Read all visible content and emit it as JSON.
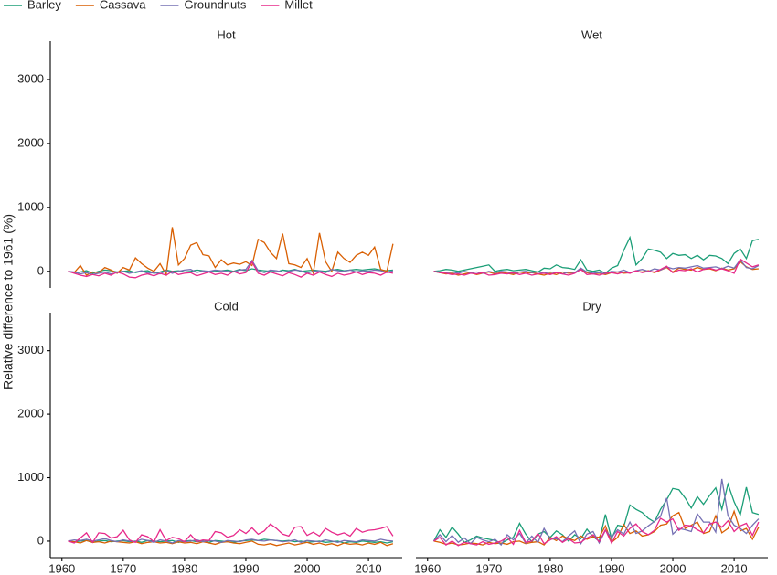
{
  "chart_data": {
    "type": "line",
    "y_label": "Relative difference to 1961 (%)",
    "series": [
      {
        "name": "Barley",
        "color": "#1b9e77"
      },
      {
        "name": "Cassava",
        "color": "#d95f02"
      },
      {
        "name": "Groundnuts",
        "color": "#7570b3"
      },
      {
        "name": "Millet",
        "color": "#e7298a"
      }
    ],
    "x": [
      1961,
      1962,
      1963,
      1964,
      1965,
      1966,
      1967,
      1968,
      1969,
      1970,
      1971,
      1972,
      1973,
      1974,
      1975,
      1976,
      1977,
      1978,
      1979,
      1980,
      1981,
      1982,
      1983,
      1984,
      1985,
      1986,
      1987,
      1988,
      1989,
      1990,
      1991,
      1992,
      1993,
      1994,
      1995,
      1996,
      1997,
      1998,
      1999,
      2000,
      2001,
      2002,
      2003,
      2004,
      2005,
      2006,
      2007,
      2008,
      2009,
      2010,
      2011,
      2012,
      2013,
      2014
    ],
    "xlim": [
      1958.1,
      2015.5
    ],
    "ylim": [
      -260,
      3600
    ],
    "xticks": [
      1960,
      1970,
      1980,
      1990,
      2000,
      2010
    ],
    "yticks": [
      0,
      1000,
      2000,
      3000
    ],
    "panels": [
      {
        "title": "Hot",
        "values": [
          [
            0,
            -20,
            -10,
            10,
            -30,
            0,
            20,
            10,
            -10,
            0,
            10,
            -20,
            0,
            10,
            -30,
            -10,
            20,
            0,
            10,
            -10,
            0,
            20,
            10,
            -10,
            0,
            10,
            20,
            0,
            30,
            10,
            40,
            20,
            10,
            0,
            -10,
            20,
            10,
            30,
            0,
            10,
            20,
            10,
            0,
            20,
            30,
            10,
            20,
            30,
            20,
            30,
            40,
            20,
            10,
            20
          ],
          [
            0,
            -20,
            90,
            -60,
            -10,
            -20,
            60,
            20,
            -30,
            60,
            20,
            210,
            120,
            50,
            0,
            120,
            -50,
            690,
            100,
            200,
            410,
            450,
            260,
            240,
            60,
            180,
            100,
            130,
            110,
            150,
            90,
            500,
            450,
            300,
            200,
            590,
            120,
            100,
            60,
            200,
            -30,
            600,
            150,
            0,
            300,
            200,
            140,
            250,
            300,
            250,
            380,
            30,
            0,
            430
          ],
          [
            0,
            -10,
            -40,
            -20,
            -50,
            -30,
            -10,
            -40,
            -20,
            0,
            -30,
            -10,
            10,
            -30,
            -20,
            -40,
            10,
            -30,
            0,
            20,
            30,
            -20,
            10,
            0,
            20,
            10,
            0,
            -10,
            20,
            30,
            170,
            10,
            -20,
            20,
            10,
            -10,
            0,
            20,
            10,
            -30,
            0,
            10,
            -20,
            30,
            10,
            0,
            20,
            -10,
            10,
            0,
            20,
            10,
            -20,
            10
          ],
          [
            0,
            -30,
            -60,
            -80,
            -50,
            -70,
            -30,
            -60,
            -10,
            -40,
            -90,
            -100,
            -60,
            -40,
            -70,
            -30,
            -60,
            0,
            -50,
            -30,
            -20,
            -70,
            -40,
            -10,
            -50,
            -30,
            -60,
            0,
            -40,
            -20,
            150,
            -30,
            -60,
            -10,
            -40,
            -70,
            -20,
            -50,
            -90,
            -30,
            -60,
            -10,
            -50,
            -80,
            -30,
            -60,
            -40,
            -10,
            -50,
            -20,
            -30,
            -60,
            -10,
            -30
          ]
        ]
      },
      {
        "title": "Wet",
        "values": [
          [
            0,
            10,
            30,
            20,
            0,
            20,
            40,
            60,
            80,
            100,
            0,
            20,
            30,
            10,
            20,
            30,
            10,
            -10,
            50,
            40,
            100,
            60,
            50,
            30,
            180,
            20,
            0,
            20,
            -30,
            50,
            90,
            330,
            530,
            100,
            200,
            350,
            330,
            300,
            200,
            280,
            250,
            260,
            200,
            250,
            180,
            250,
            240,
            200,
            120,
            280,
            350,
            200,
            480,
            500
          ],
          [
            0,
            -20,
            -40,
            -30,
            -60,
            -40,
            -20,
            -50,
            -30,
            -10,
            -40,
            -20,
            -30,
            -50,
            -10,
            -30,
            -20,
            -40,
            -60,
            -30,
            -50,
            -10,
            -30,
            -20,
            40,
            -20,
            -40,
            -30,
            -50,
            -20,
            -10,
            -30,
            -20,
            0,
            -10,
            10,
            -20,
            20,
            60,
            -10,
            50,
            30,
            20,
            60,
            30,
            40,
            10,
            50,
            20,
            40,
            150,
            70,
            30,
            40
          ],
          [
            0,
            -10,
            -20,
            -10,
            -30,
            0,
            -20,
            -10,
            -30,
            0,
            -20,
            0,
            -10,
            -30,
            -10,
            0,
            -20,
            -10,
            -30,
            -10,
            -20,
            -40,
            -10,
            -20,
            50,
            -10,
            -30,
            -20,
            -40,
            0,
            -10,
            20,
            -20,
            10,
            30,
            0,
            40,
            20,
            70,
            40,
            60,
            50,
            70,
            90,
            50,
            60,
            70,
            40,
            80,
            50,
            180,
            60,
            40,
            90
          ],
          [
            0,
            -20,
            -30,
            -50,
            -40,
            -60,
            -30,
            -40,
            -20,
            -60,
            -50,
            -30,
            -40,
            -20,
            -50,
            -30,
            -60,
            -40,
            -30,
            -50,
            -20,
            -40,
            -60,
            -30,
            30,
            -50,
            -40,
            -60,
            -30,
            -20,
            -40,
            -10,
            -30,
            10,
            -20,
            0,
            -10,
            30,
            80,
            -20,
            20,
            10,
            40,
            -10,
            30,
            50,
            20,
            40,
            10,
            -30,
            190,
            130,
            70,
            100
          ]
        ]
      },
      {
        "title": "Cold",
        "values": [
          [
            0,
            -10,
            0,
            10,
            -20,
            0,
            10,
            -10,
            0,
            10,
            -10,
            0,
            -20,
            10,
            0,
            -10,
            0,
            10,
            -20,
            0,
            10,
            -10,
            0,
            -20,
            10,
            0,
            -10,
            -20,
            0,
            10,
            20,
            10,
            30,
            20,
            10,
            0,
            10,
            -10,
            0,
            -20,
            -10,
            0,
            -20,
            -10,
            0,
            -30,
            -10,
            -20,
            0,
            -10,
            -20,
            -10,
            -30,
            -10
          ],
          [
            0,
            -10,
            -30,
            10,
            -20,
            -10,
            -30,
            0,
            -10,
            -20,
            -30,
            -10,
            -40,
            -20,
            -10,
            -30,
            -20,
            -40,
            -10,
            -30,
            -20,
            -40,
            -10,
            -30,
            -50,
            -20,
            -10,
            -30,
            -40,
            -20,
            0,
            -50,
            -60,
            -40,
            -70,
            -50,
            -30,
            -60,
            -40,
            -20,
            -50,
            -30,
            -60,
            -40,
            -70,
            -30,
            -50,
            -40,
            -60,
            -30,
            -50,
            -20,
            -70,
            -40
          ],
          [
            0,
            20,
            10,
            30,
            0,
            20,
            40,
            10,
            -10,
            20,
            0,
            -10,
            30,
            10,
            -20,
            20,
            0,
            -30,
            10,
            -10,
            0,
            20,
            -10,
            10,
            0,
            -20,
            10,
            0,
            -10,
            20,
            30,
            10,
            0,
            20,
            10,
            -10,
            0,
            20,
            -20,
            10,
            0,
            -10,
            20,
            0,
            -20,
            10,
            0,
            -10,
            20,
            10,
            0,
            30,
            10,
            0
          ],
          [
            0,
            -30,
            50,
            130,
            -20,
            130,
            120,
            50,
            70,
            170,
            20,
            -20,
            100,
            70,
            -10,
            180,
            10,
            60,
            40,
            -10,
            100,
            -10,
            20,
            10,
            150,
            130,
            60,
            90,
            180,
            120,
            210,
            110,
            160,
            270,
            200,
            110,
            80,
            220,
            230,
            90,
            140,
            80,
            200,
            140,
            100,
            130,
            80,
            200,
            140,
            170,
            180,
            200,
            230,
            80
          ]
        ]
      },
      {
        "title": "Dry",
        "values": [
          [
            0,
            180,
            60,
            220,
            110,
            -20,
            20,
            80,
            50,
            30,
            10,
            -40,
            20,
            60,
            280,
            110,
            -10,
            110,
            150,
            60,
            160,
            100,
            0,
            100,
            40,
            190,
            70,
            0,
            420,
            40,
            250,
            230,
            570,
            500,
            450,
            360,
            300,
            500,
            650,
            830,
            810,
            680,
            520,
            700,
            580,
            720,
            840,
            500,
            900,
            620,
            410,
            850,
            450,
            420
          ],
          [
            0,
            -20,
            -50,
            -30,
            -60,
            -50,
            -30,
            -40,
            -60,
            -20,
            -40,
            -30,
            -50,
            -10,
            0,
            -40,
            -20,
            -10,
            -60,
            60,
            10,
            80,
            40,
            10,
            80,
            30,
            70,
            60,
            240,
            -20,
            60,
            260,
            120,
            160,
            80,
            100,
            150,
            250,
            270,
            400,
            450,
            200,
            250,
            300,
            120,
            150,
            400,
            130,
            200,
            470,
            160,
            200,
            30,
            220
          ],
          [
            0,
            100,
            -10,
            90,
            -20,
            50,
            -40,
            60,
            20,
            -10,
            30,
            -60,
            100,
            20,
            120,
            -30,
            80,
            -20,
            200,
            30,
            40,
            -10,
            80,
            160,
            -40,
            110,
            150,
            -30,
            170,
            60,
            180,
            110,
            300,
            120,
            160,
            240,
            310,
            390,
            680,
            110,
            200,
            180,
            150,
            430,
            300,
            300,
            140,
            980,
            400,
            250,
            200,
            120,
            250,
            350
          ],
          [
            0,
            60,
            -60,
            0,
            -70,
            -20,
            -40,
            -60,
            -10,
            -50,
            -30,
            0,
            60,
            -50,
            170,
            -20,
            0,
            120,
            -40,
            20,
            70,
            -20,
            40,
            -30,
            -20,
            50,
            100,
            -10,
            180,
            -30,
            150,
            80,
            200,
            270,
            150,
            100,
            170,
            360,
            300,
            350,
            170,
            250,
            240,
            180,
            130,
            270,
            300,
            220,
            320,
            150,
            240,
            280,
            90,
            300
          ]
        ]
      }
    ]
  }
}
